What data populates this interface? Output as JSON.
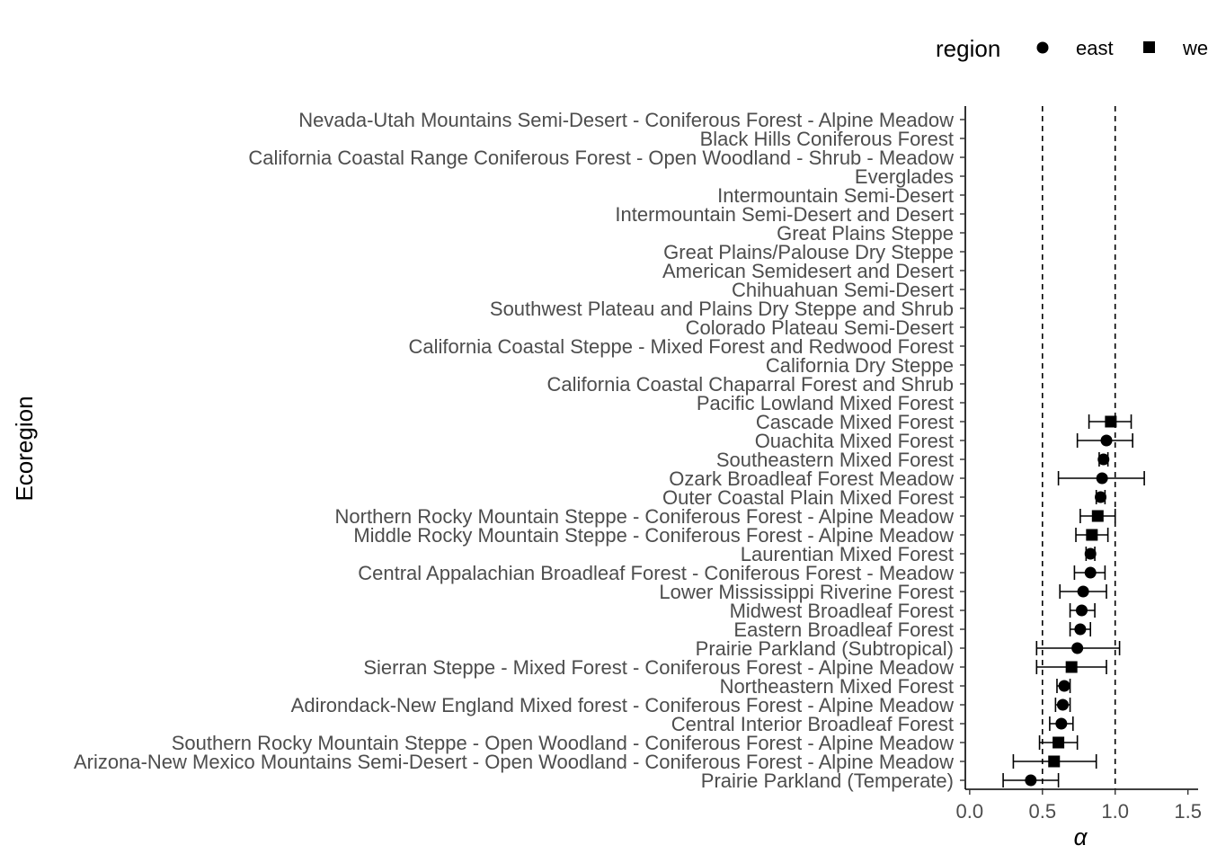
{
  "chart_data": {
    "type": "scatter",
    "xlabel": "α",
    "ylabel": "Ecoregion",
    "xlim": [
      -0.03,
      1.57
    ],
    "x_ticks": [
      "0.0",
      "0.5",
      "1.0",
      "1.5"
    ],
    "x_tick_values": [
      0,
      0.5,
      1.0,
      1.5
    ],
    "reference_lines": [
      0.5,
      1.0
    ],
    "grid": false,
    "legend": {
      "title": "region",
      "position": "top",
      "entries": [
        {
          "label": "east",
          "shape": "circle"
        },
        {
          "label": "west",
          "shape": "square"
        }
      ]
    },
    "categories": [
      "Nevada-Utah Mountains Semi-Desert - Coniferous Forest - Alpine Meadow",
      "Black Hills Coniferous Forest",
      "California Coastal Range Coniferous Forest - Open Woodland - Shrub - Meadow",
      "Everglades",
      "Intermountain Semi-Desert",
      "Intermountain Semi-Desert and Desert",
      "Great Plains Steppe",
      "Great Plains/Palouse Dry Steppe",
      "American Semidesert and Desert",
      "Chihuahuan Semi-Desert",
      "Southwest Plateau and Plains Dry Steppe and Shrub",
      "Colorado Plateau Semi-Desert",
      "California Coastal Steppe - Mixed Forest and Redwood Forest",
      "California Dry Steppe",
      "California Coastal Chaparral Forest and Shrub",
      "Pacific Lowland Mixed Forest",
      "Cascade Mixed Forest",
      "Ouachita Mixed Forest",
      "Southeastern Mixed Forest",
      "Ozark Broadleaf Forest Meadow",
      "Outer Coastal Plain Mixed Forest",
      "Northern Rocky Mountain Steppe - Coniferous Forest - Alpine Meadow",
      "Middle Rocky Mountain Steppe - Coniferous Forest - Alpine Meadow",
      "Laurentian Mixed Forest",
      "Central Appalachian Broadleaf Forest - Coniferous Forest - Meadow",
      "Lower Mississippi Riverine Forest",
      "Midwest Broadleaf Forest",
      "Eastern Broadleaf Forest",
      "Prairie Parkland (Subtropical)",
      "Sierran Steppe - Mixed Forest - Coniferous Forest - Alpine Meadow",
      "Northeastern Mixed Forest",
      "Adirondack-New England Mixed forest - Coniferous Forest - Alpine Meadow",
      "Central Interior Broadleaf Forest",
      "Southern Rocky Mountain Steppe - Open Woodland - Coniferous Forest - Alpine Meadow",
      "Arizona-New Mexico Mountains Semi-Desert - Open Woodland - Coniferous Forest - Alpine Meadow",
      "Prairie Parkland (Temperate)"
    ],
    "points": [
      {
        "category": "Cascade Mixed Forest",
        "region": "west",
        "alpha": 0.97,
        "lower": 0.82,
        "upper": 1.11
      },
      {
        "category": "Ouachita Mixed Forest",
        "region": "east",
        "alpha": 0.94,
        "lower": 0.74,
        "upper": 1.12
      },
      {
        "category": "Southeastern Mixed Forest",
        "region": "east",
        "alpha": 0.92,
        "lower": 0.89,
        "upper": 0.95
      },
      {
        "category": "Ozark Broadleaf Forest Meadow",
        "region": "east",
        "alpha": 0.91,
        "lower": 0.61,
        "upper": 1.2
      },
      {
        "category": "Outer Coastal Plain Mixed Forest",
        "region": "east",
        "alpha": 0.9,
        "lower": 0.87,
        "upper": 0.93
      },
      {
        "category": "Northern Rocky Mountain Steppe - Coniferous Forest - Alpine Meadow",
        "region": "west",
        "alpha": 0.88,
        "lower": 0.76,
        "upper": 1.0
      },
      {
        "category": "Middle Rocky Mountain Steppe - Coniferous Forest - Alpine Meadow",
        "region": "west",
        "alpha": 0.84,
        "lower": 0.73,
        "upper": 0.95
      },
      {
        "category": "Laurentian Mixed Forest",
        "region": "east",
        "alpha": 0.83,
        "lower": 0.8,
        "upper": 0.86
      },
      {
        "category": "Central Appalachian Broadleaf Forest - Coniferous Forest - Meadow",
        "region": "east",
        "alpha": 0.83,
        "lower": 0.72,
        "upper": 0.93
      },
      {
        "category": "Lower Mississippi Riverine Forest",
        "region": "east",
        "alpha": 0.78,
        "lower": 0.62,
        "upper": 0.94
      },
      {
        "category": "Midwest Broadleaf Forest",
        "region": "east",
        "alpha": 0.77,
        "lower": 0.69,
        "upper": 0.86
      },
      {
        "category": "Eastern Broadleaf Forest",
        "region": "east",
        "alpha": 0.76,
        "lower": 0.69,
        "upper": 0.83
      },
      {
        "category": "Prairie Parkland (Subtropical)",
        "region": "east",
        "alpha": 0.74,
        "lower": 0.46,
        "upper": 1.03
      },
      {
        "category": "Sierran Steppe - Mixed Forest - Coniferous Forest - Alpine Meadow",
        "region": "west",
        "alpha": 0.7,
        "lower": 0.46,
        "upper": 0.94
      },
      {
        "category": "Northeastern Mixed Forest",
        "region": "east",
        "alpha": 0.65,
        "lower": 0.6,
        "upper": 0.69
      },
      {
        "category": "Adirondack-New England Mixed forest - Coniferous Forest - Alpine Meadow",
        "region": "east",
        "alpha": 0.64,
        "lower": 0.59,
        "upper": 0.69
      },
      {
        "category": "Central Interior Broadleaf Forest",
        "region": "east",
        "alpha": 0.63,
        "lower": 0.55,
        "upper": 0.71
      },
      {
        "category": "Southern Rocky Mountain Steppe - Open Woodland - Coniferous Forest - Alpine Meadow",
        "region": "west",
        "alpha": 0.61,
        "lower": 0.48,
        "upper": 0.74
      },
      {
        "category": "Arizona-New Mexico Mountains Semi-Desert - Open Woodland - Coniferous Forest - Alpine Meadow",
        "region": "west",
        "alpha": 0.58,
        "lower": 0.3,
        "upper": 0.87
      },
      {
        "category": "Prairie Parkland (Temperate)",
        "region": "east",
        "alpha": 0.42,
        "lower": 0.23,
        "upper": 0.61
      }
    ]
  }
}
